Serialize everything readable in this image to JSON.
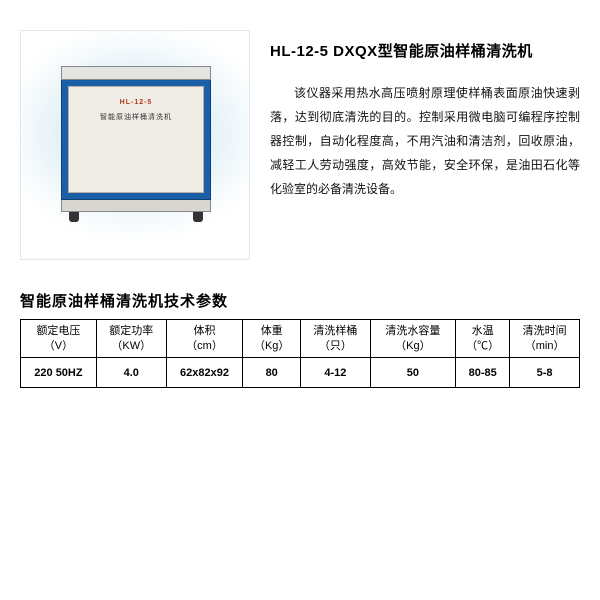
{
  "photo": {
    "model_label": "HL-12-5",
    "name_label": "智能原油样桶清洗机"
  },
  "title": "HL-12-5 DXQX型智能原油样桶清洗机",
  "description": "该仪器采用热水高压喷射原理使样桶表面原油快速剥落，达到彻底清洗的目的。控制采用微电脑可编程序控制器控制，自动化程度高，不用汽油和清洁剂，回收原油，减轻工人劳动强度，高效节能，安全环保，是油田石化等化验室的必备清洗设备。",
  "spec_title": "智能原油样桶清洗机技术参数",
  "table": {
    "columns": [
      {
        "label": "额定电压",
        "unit": "（V）"
      },
      {
        "label": "额定功率",
        "unit": "（KW）"
      },
      {
        "label": "体积",
        "unit": "（cm）"
      },
      {
        "label": "体重",
        "unit": "（Kg）"
      },
      {
        "label": "清洗样桶",
        "unit": "（只）"
      },
      {
        "label": "清洗水容量",
        "unit": "（Kg）"
      },
      {
        "label": "水温",
        "unit": "（℃）"
      },
      {
        "label": "清洗时间",
        "unit": "（min）"
      }
    ],
    "row": [
      "220 50HZ",
      "4.0",
      "62x82x92",
      "80",
      "4-12",
      "50",
      "80-85",
      "5-8"
    ]
  },
  "colors": {
    "machine_body": "#1a5fa8",
    "machine_panel": "#efece5",
    "photo_bg_inner": "#bfe0f0",
    "border": "#000000"
  }
}
